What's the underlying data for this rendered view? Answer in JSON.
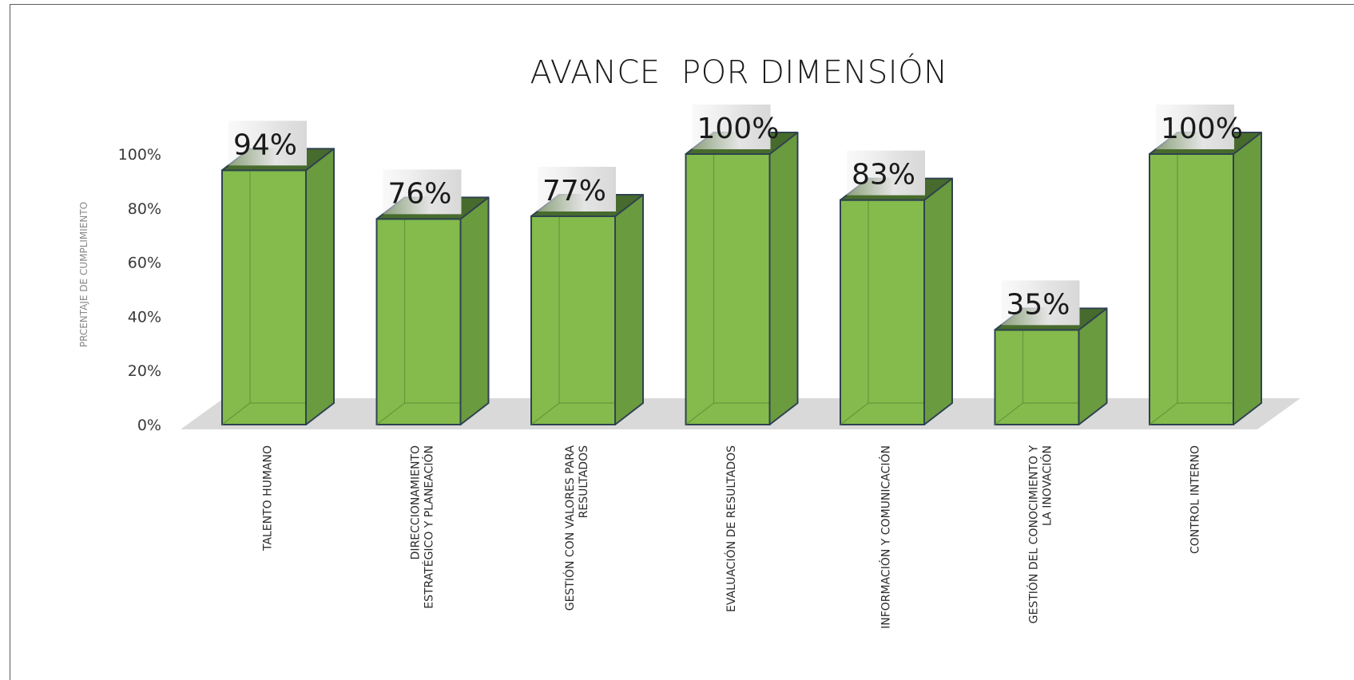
{
  "chart_data": {
    "type": "bar",
    "title": "AVANCE  POR DIMENSIÓN",
    "ylabel": "PRCENTAJE DE CUMPLIMIENTO",
    "xlabel": "",
    "ylim": [
      0,
      1
    ],
    "yticks": [
      "0%",
      "20%",
      "40%",
      "60%",
      "80%",
      "100%"
    ],
    "categories": [
      [
        "TALENTO HUMANO"
      ],
      [
        "DIRECCIONAMIENTO",
        "ESTRATÉGICO Y PLANEACIÓN"
      ],
      [
        "GESTIÓN CON VALORES PARA",
        "RESULTADOS"
      ],
      [
        "EVALUACIÓN DE RESULTADOS"
      ],
      [
        "INFORMACIÓN Y COMUNICACIÓN"
      ],
      [
        "GESTIÓN DEL CONOCIMIENTO Y",
        "LA INOVACIÓN"
      ],
      [
        "CONTROL INTERNO"
      ]
    ],
    "values": [
      0.94,
      0.76,
      0.77,
      1.0,
      0.83,
      0.35,
      1.0
    ],
    "data_labels": [
      "94%",
      "76%",
      "77%",
      "100%",
      "83%",
      "35%",
      "100%"
    ],
    "style": "3d-column",
    "grid": false,
    "legend": "none",
    "colors": {
      "bar_front": "#84bb4c",
      "bar_side": "#6a9b3f",
      "bar_top": "#476b2c",
      "bar_edge": "#2f4250",
      "floor": "#d9d9d9",
      "label_box": "#e6e6e6"
    }
  }
}
